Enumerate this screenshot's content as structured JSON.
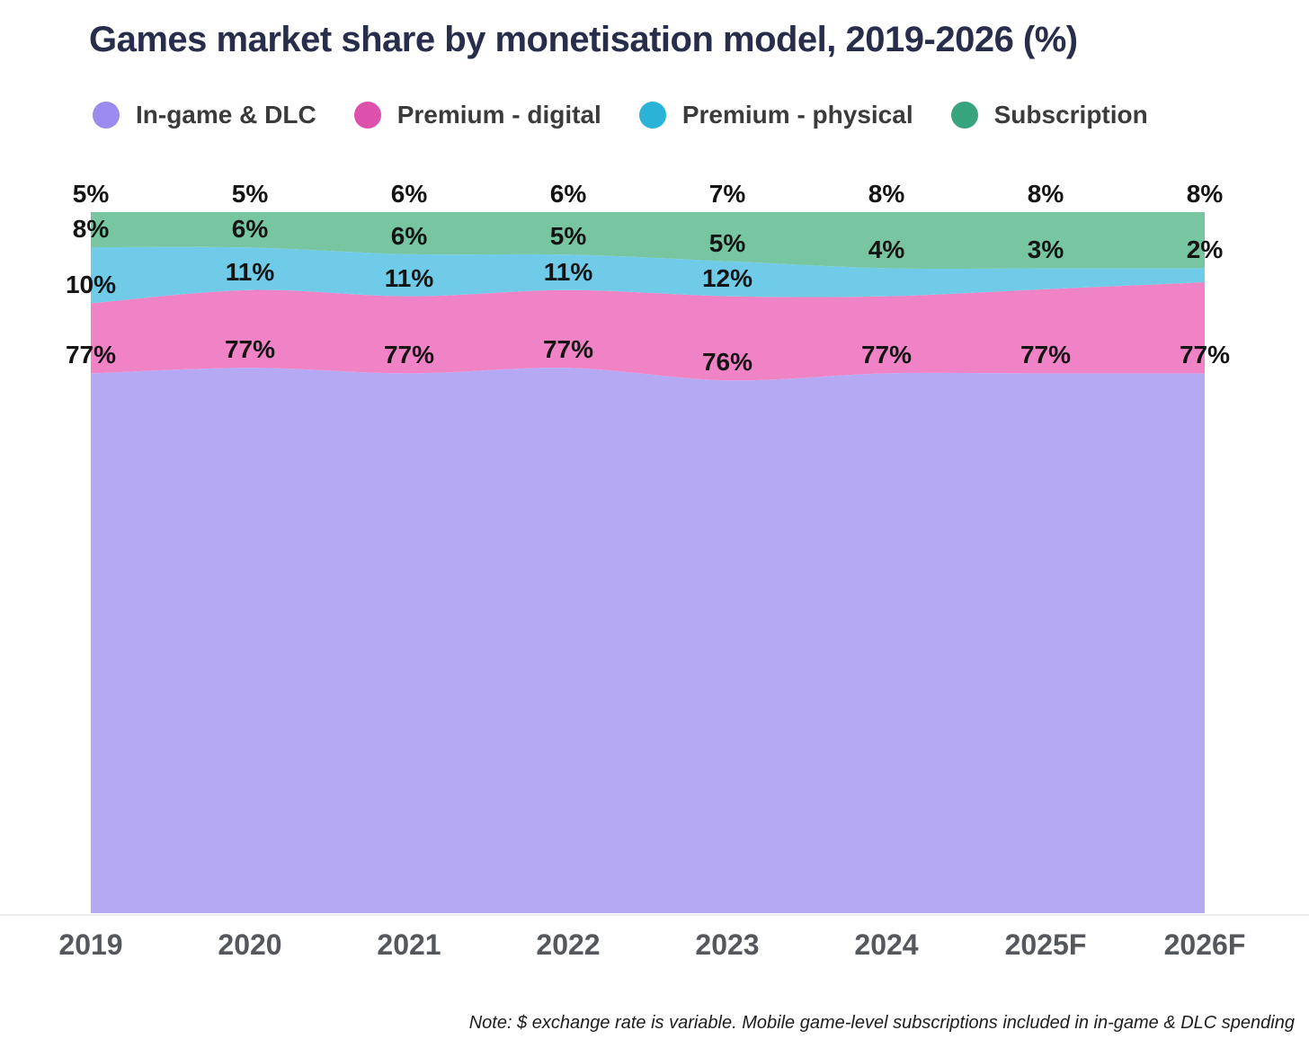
{
  "title": "Games market share by monetisation model, 2019-2026 (%)",
  "note": "Note: $ exchange rate is variable. Mobile game-level subscriptions included in in-game & DLC spending",
  "colors": {
    "title_text": "#272d4b",
    "legend_text": "#3b3b3b",
    "axis_text": "#54585d",
    "data_label_text": "#141414",
    "axis_line": "#ececec",
    "background": "#ffffff"
  },
  "chart_data": {
    "type": "area",
    "stacked": true,
    "stacking": "percent",
    "title": "Games market share by monetisation model, 2019-2026 (%)",
    "xlabel": "",
    "ylabel": "",
    "ylim": [
      0,
      100
    ],
    "grid": false,
    "legend_position": "top",
    "x": [
      "2019",
      "2020",
      "2021",
      "2022",
      "2023",
      "2024",
      "2025F",
      "2026F"
    ],
    "series": [
      {
        "name": "In-game & DLC",
        "color": "#9c8bee",
        "fill": "#b5a9f4",
        "values": [
          77,
          77,
          77,
          77,
          76,
          77,
          77,
          77
        ],
        "labels": [
          "77%",
          "77%",
          "77%",
          "77%",
          "76%",
          "77%",
          "77%",
          "77%"
        ]
      },
      {
        "name": "Premium - digital",
        "color": "#dd50ab",
        "fill": "#f083c6",
        "values": [
          10,
          11,
          11,
          11,
          12,
          11,
          12,
          13
        ],
        "labels": [
          "10%",
          "11%",
          "11%",
          "11%",
          "12%",
          null,
          null,
          null
        ]
      },
      {
        "name": "Premium - physical",
        "color": "#2ab3d7",
        "fill": "#6fcbe7",
        "values": [
          8,
          6,
          6,
          5,
          5,
          4,
          3,
          2
        ],
        "labels": [
          "8%",
          "6%",
          "6%",
          "5%",
          "5%",
          "4%",
          "3%",
          "2%"
        ]
      },
      {
        "name": "Subscription",
        "color": "#37a47d",
        "fill": "#77c5a1",
        "values": [
          5,
          5,
          6,
          6,
          7,
          8,
          8,
          8
        ],
        "labels": [
          "5%",
          "5%",
          "6%",
          "6%",
          "7%",
          "8%",
          "8%",
          "8%"
        ]
      }
    ]
  }
}
